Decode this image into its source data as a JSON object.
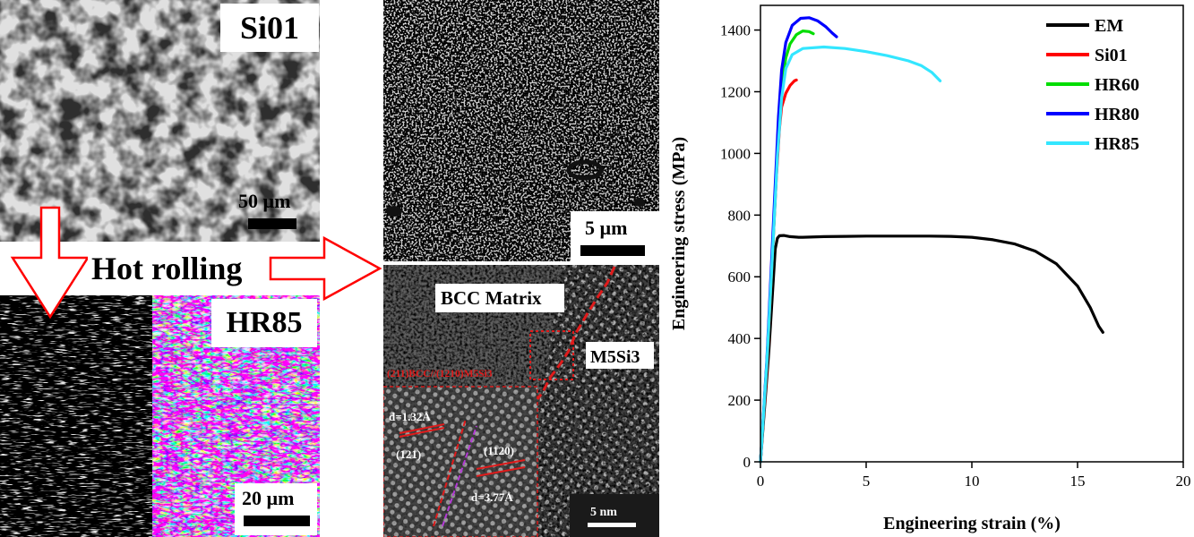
{
  "figure": {
    "panel_sem_si01": {
      "label": "Si01",
      "scale_bar": "50 µm"
    },
    "panel_sem_hr85": {
      "label": "HR85",
      "scale_bar": "20 µm"
    },
    "process_label": "Hot rolling",
    "panel_sem_precip": {
      "scale_bar": "5 µm"
    },
    "panel_hrtem": {
      "matrix_label": "BCC Matrix",
      "phase_label": "M5Si3",
      "orientation_relation": "(211)BCC//(1210)M5Si3",
      "d_spacing_1": "d=1.32Å",
      "plane_1": "(121)",
      "plane_2": "(1120)",
      "d_spacing_2": "d=3.77Å",
      "scale_bar": "5 nm"
    }
  },
  "chart_data": {
    "type": "line",
    "xlabel": "Engineering strain (%)",
    "ylabel": "Engineering stress (MPa)",
    "xlim": [
      0,
      20
    ],
    "ylim": [
      0,
      1480
    ],
    "x_ticks": [
      0,
      5,
      10,
      15,
      20
    ],
    "y_ticks": [
      0,
      200,
      400,
      600,
      800,
      1000,
      1200,
      1400
    ],
    "legend_position": "top-right",
    "series": [
      {
        "name": "EM",
        "color": "#000000",
        "points": [
          [
            0,
            0
          ],
          [
            0.4,
            360
          ],
          [
            0.7,
            690
          ],
          [
            0.8,
            725
          ],
          [
            0.9,
            733
          ],
          [
            1.1,
            734
          ],
          [
            1.4,
            730
          ],
          [
            1.8,
            728
          ],
          [
            2.0,
            728
          ],
          [
            3,
            730
          ],
          [
            4,
            731
          ],
          [
            5,
            732
          ],
          [
            6,
            732
          ],
          [
            7,
            732
          ],
          [
            8,
            732
          ],
          [
            9,
            731
          ],
          [
            10,
            728
          ],
          [
            11,
            720
          ],
          [
            12,
            707
          ],
          [
            13,
            683
          ],
          [
            14,
            642
          ],
          [
            15,
            570
          ],
          [
            15.6,
            500
          ],
          [
            16.0,
            440
          ],
          [
            16.2,
            420
          ]
        ]
      },
      {
        "name": "Si01",
        "color": "#ff0000",
        "points": [
          [
            0,
            0
          ],
          [
            0.3,
            300
          ],
          [
            0.55,
            650
          ],
          [
            0.75,
            920
          ],
          [
            0.9,
            1080
          ],
          [
            1.0,
            1150
          ],
          [
            1.2,
            1195
          ],
          [
            1.4,
            1220
          ],
          [
            1.6,
            1235
          ],
          [
            1.7,
            1238
          ]
        ]
      },
      {
        "name": "HR60",
        "color": "#00dd00",
        "points": [
          [
            0,
            0
          ],
          [
            0.3,
            320
          ],
          [
            0.6,
            720
          ],
          [
            0.85,
            1080
          ],
          [
            1.0,
            1220
          ],
          [
            1.2,
            1310
          ],
          [
            1.4,
            1355
          ],
          [
            1.7,
            1385
          ],
          [
            2.0,
            1397
          ],
          [
            2.3,
            1395
          ],
          [
            2.5,
            1388
          ]
        ]
      },
      {
        "name": "HR80",
        "color": "#0000ff",
        "points": [
          [
            0,
            0
          ],
          [
            0.3,
            330
          ],
          [
            0.6,
            760
          ],
          [
            0.85,
            1120
          ],
          [
            1.0,
            1270
          ],
          [
            1.2,
            1360
          ],
          [
            1.5,
            1415
          ],
          [
            1.9,
            1438
          ],
          [
            2.3,
            1440
          ],
          [
            2.7,
            1430
          ],
          [
            3.1,
            1410
          ],
          [
            3.4,
            1390
          ],
          [
            3.6,
            1378
          ]
        ]
      },
      {
        "name": "HR85",
        "color": "#33e6ff",
        "points": [
          [
            0,
            0
          ],
          [
            0.3,
            320
          ],
          [
            0.6,
            720
          ],
          [
            0.8,
            990
          ],
          [
            1.0,
            1180
          ],
          [
            1.2,
            1275
          ],
          [
            1.5,
            1320
          ],
          [
            2.0,
            1340
          ],
          [
            3,
            1345
          ],
          [
            4,
            1340
          ],
          [
            5,
            1330
          ],
          [
            6,
            1317
          ],
          [
            7,
            1300
          ],
          [
            7.6,
            1285
          ],
          [
            8.1,
            1263
          ],
          [
            8.5,
            1235
          ]
        ]
      }
    ]
  }
}
